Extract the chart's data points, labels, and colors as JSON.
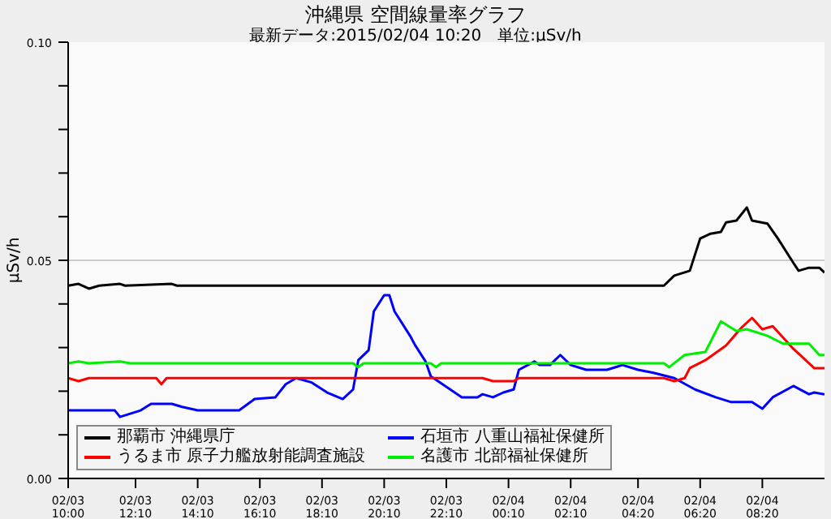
{
  "chart_data": {
    "type": "line",
    "title": "沖縄県 空間線量率グラフ",
    "subtitle": "最新データ:2015/02/04 10:20　単位:μSv/h",
    "ylabel": "μSv/h",
    "xlim": [
      "2015-02-03T10:00",
      "2015-02-04T10:20"
    ],
    "xticks": [
      {
        "value": "2015-02-03T10:00",
        "label": "02/03\n10:00"
      },
      {
        "value": "2015-02-03T12:10",
        "label": "02/03\n12:10"
      },
      {
        "value": "2015-02-03T14:10",
        "label": "02/03\n14:10"
      },
      {
        "value": "2015-02-03T16:10",
        "label": "02/03\n16:10"
      },
      {
        "value": "2015-02-03T18:10",
        "label": "02/03\n18:10"
      },
      {
        "value": "2015-02-03T20:10",
        "label": "02/03\n20:10"
      },
      {
        "value": "2015-02-03T22:10",
        "label": "02/03\n22:10"
      },
      {
        "value": "2015-02-04T00:10",
        "label": "02/04\n00:10"
      },
      {
        "value": "2015-02-04T02:10",
        "label": "02/04\n02:10"
      },
      {
        "value": "2015-02-04T04:20",
        "label": "02/04\n04:20"
      },
      {
        "value": "2015-02-04T06:20",
        "label": "02/04\n06:20"
      },
      {
        "value": "2015-02-04T08:20",
        "label": "02/04\n08:20"
      }
    ],
    "ylim": [
      0,
      0.1
    ],
    "yticks": [
      {
        "value": 0,
        "label": "0.00"
      },
      {
        "value": 0.01,
        "label": null
      },
      {
        "value": 0.02,
        "label": null
      },
      {
        "value": 0.03,
        "label": null
      },
      {
        "value": 0.04,
        "label": null
      },
      {
        "value": 0.05,
        "label": "0.05"
      },
      {
        "value": 0.06,
        "label": null
      },
      {
        "value": 0.07,
        "label": null
      },
      {
        "value": 0.08,
        "label": null
      },
      {
        "value": 0.09,
        "label": null
      },
      {
        "value": 0.1,
        "label": "0.10"
      }
    ],
    "ref_lines": [
      {
        "axis": "y",
        "value": 0.05,
        "color": "#cccccc"
      }
    ],
    "legend": "bottom left",
    "marker": "none",
    "line_style": "solid",
    "series": [
      {
        "name": "那覇市 沖縄県庁",
        "color": "#000000",
        "x": [
          "2015-02-03T10:00",
          "2015-02-03T10:20",
          "2015-02-03T10:40",
          "2015-02-03T11:00",
          "2015-02-03T11:40",
          "2015-02-03T11:50",
          "2015-02-03T13:20",
          "2015-02-03T13:30",
          "2015-02-04T05:10",
          "2015-02-04T05:30",
          "2015-02-04T06:00",
          "2015-02-04T06:20",
          "2015-02-04T06:40",
          "2015-02-04T07:00",
          "2015-02-04T07:10",
          "2015-02-04T07:30",
          "2015-02-04T07:50",
          "2015-02-04T08:00",
          "2015-02-04T08:30",
          "2015-02-04T08:50",
          "2015-02-04T09:20",
          "2015-02-04T09:30",
          "2015-02-04T09:50",
          "2015-02-04T10:10",
          "2015-02-04T10:20"
        ],
        "values": [
          0.0442,
          0.0446,
          0.0435,
          0.0442,
          0.0446,
          0.0442,
          0.0446,
          0.0442,
          0.0442,
          0.0465,
          0.0476,
          0.055,
          0.0561,
          0.0565,
          0.0587,
          0.0591,
          0.0621,
          0.0591,
          0.0584,
          0.055,
          0.0494,
          0.0476,
          0.0483,
          0.0483,
          0.0472
        ]
      },
      {
        "name": "石垣市 八重山福祉保健所",
        "color": "#0000ff",
        "x": [
          "2015-02-03T10:00",
          "2015-02-03T11:30",
          "2015-02-03T11:40",
          "2015-02-03T12:20",
          "2015-02-03T12:40",
          "2015-02-03T13:20",
          "2015-02-03T13:40",
          "2015-02-03T14:10",
          "2015-02-03T15:30",
          "2015-02-03T16:00",
          "2015-02-03T16:40",
          "2015-02-03T17:00",
          "2015-02-03T17:20",
          "2015-02-03T17:50",
          "2015-02-03T18:20",
          "2015-02-03T18:50",
          "2015-02-03T19:10",
          "2015-02-03T19:20",
          "2015-02-03T19:40",
          "2015-02-03T19:50",
          "2015-02-03T20:10",
          "2015-02-03T20:20",
          "2015-02-03T20:30",
          "2015-02-03T21:00",
          "2015-02-03T21:10",
          "2015-02-03T21:30",
          "2015-02-03T21:40",
          "2015-02-03T22:40",
          "2015-02-03T23:10",
          "2015-02-03T23:20",
          "2015-02-03T23:40",
          "2015-02-04T00:00",
          "2015-02-04T00:20",
          "2015-02-04T00:30",
          "2015-02-04T01:00",
          "2015-02-04T01:10",
          "2015-02-04T01:30",
          "2015-02-04T01:50",
          "2015-02-04T02:10",
          "2015-02-04T02:40",
          "2015-02-04T03:20",
          "2015-02-04T03:50",
          "2015-02-04T04:20",
          "2015-02-04T04:50",
          "2015-02-04T05:30",
          "2015-02-04T06:10",
          "2015-02-04T06:50",
          "2015-02-04T07:20",
          "2015-02-04T08:00",
          "2015-02-04T08:20",
          "2015-02-04T08:40",
          "2015-02-04T09:20",
          "2015-02-04T09:50",
          "2015-02-04T10:00",
          "2015-02-04T10:20"
        ],
        "values": [
          0.0156,
          0.0156,
          0.0141,
          0.0156,
          0.0171,
          0.0171,
          0.0164,
          0.0156,
          0.0156,
          0.0182,
          0.0186,
          0.0216,
          0.023,
          0.022,
          0.0197,
          0.0182,
          0.0204,
          0.0271,
          0.0294,
          0.0383,
          0.042,
          0.042,
          0.0383,
          0.0327,
          0.0305,
          0.0268,
          0.0234,
          0.0186,
          0.0186,
          0.0193,
          0.0186,
          0.0197,
          0.0204,
          0.0249,
          0.0268,
          0.026,
          0.026,
          0.0283,
          0.026,
          0.0249,
          0.0249,
          0.026,
          0.0249,
          0.0242,
          0.023,
          0.0204,
          0.0186,
          0.0175,
          0.0175,
          0.016,
          0.0186,
          0.0212,
          0.0193,
          0.0197,
          0.0193
        ]
      },
      {
        "name": "うるま市 原子力艦放射能調査施設",
        "color": "#ff0000",
        "x": [
          "2015-02-03T10:00",
          "2015-02-03T10:20",
          "2015-02-03T10:40",
          "2015-02-03T12:50",
          "2015-02-03T13:00",
          "2015-02-03T13:10",
          "2015-02-03T23:20",
          "2015-02-03T23:40",
          "2015-02-04T00:20",
          "2015-02-04T00:30",
          "2015-02-04T05:10",
          "2015-02-04T05:30",
          "2015-02-04T05:50",
          "2015-02-04T06:00",
          "2015-02-04T06:30",
          "2015-02-04T07:10",
          "2015-02-04T07:40",
          "2015-02-04T08:00",
          "2015-02-04T08:20",
          "2015-02-04T08:40",
          "2015-02-04T09:20",
          "2015-02-04T10:00",
          "2015-02-04T10:20"
        ],
        "values": [
          0.023,
          0.0223,
          0.023,
          0.023,
          0.0216,
          0.023,
          0.023,
          0.0223,
          0.0223,
          0.023,
          0.023,
          0.0223,
          0.023,
          0.0253,
          0.0271,
          0.0305,
          0.0346,
          0.0368,
          0.0342,
          0.0349,
          0.0297,
          0.0253,
          0.0253
        ]
      },
      {
        "name": "名護市 北部福祉保健所",
        "color": "#00ee00",
        "x": [
          "2015-02-03T10:00",
          "2015-02-03T10:20",
          "2015-02-03T10:40",
          "2015-02-03T11:40",
          "2015-02-03T12:00",
          "2015-02-03T19:10",
          "2015-02-03T19:20",
          "2015-02-03T19:30",
          "2015-02-03T21:40",
          "2015-02-03T21:50",
          "2015-02-03T22:00",
          "2015-02-04T05:10",
          "2015-02-04T05:20",
          "2015-02-04T05:50",
          "2015-02-04T06:30",
          "2015-02-04T07:00",
          "2015-02-04T07:30",
          "2015-02-04T07:50",
          "2015-02-04T08:30",
          "2015-02-04T09:00",
          "2015-02-04T09:50",
          "2015-02-04T10:10",
          "2015-02-04T10:20"
        ],
        "values": [
          0.0264,
          0.0268,
          0.0264,
          0.0268,
          0.0264,
          0.0264,
          0.0255,
          0.0264,
          0.0264,
          0.0255,
          0.0264,
          0.0264,
          0.0255,
          0.0283,
          0.029,
          0.036,
          0.0338,
          0.0342,
          0.0327,
          0.0309,
          0.0309,
          0.0283,
          0.0283
        ]
      }
    ]
  }
}
